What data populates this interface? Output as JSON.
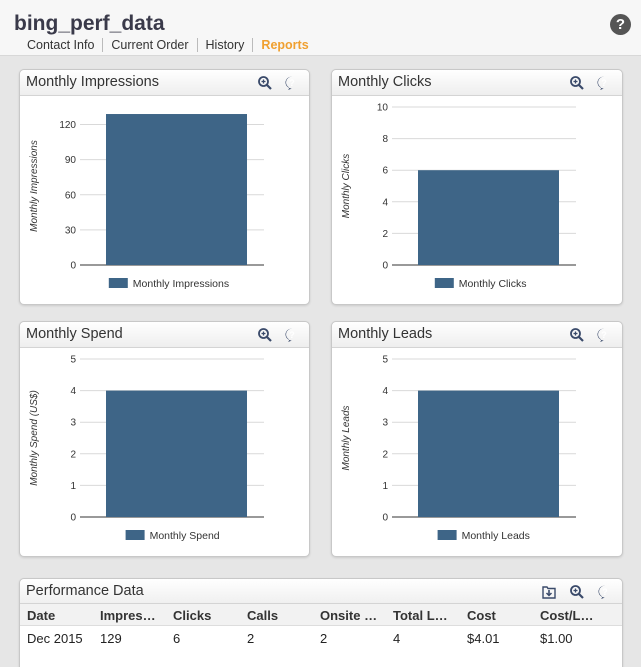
{
  "app": {
    "title": "bing_perf_data"
  },
  "tabs": [
    {
      "label": "Contact Info",
      "active": false
    },
    {
      "label": "Current Order",
      "active": false
    },
    {
      "label": "History",
      "active": false
    },
    {
      "label": "Reports",
      "active": true
    }
  ],
  "colors": {
    "bar": "#3e6587",
    "accent": "#f0a030",
    "icon": "#3a4a6a"
  },
  "panels": [
    {
      "title": "Monthly Impressions"
    },
    {
      "title": "Monthly Clicks"
    },
    {
      "title": "Monthly Spend"
    },
    {
      "title": "Monthly Leads"
    }
  ],
  "chart_data": [
    {
      "type": "bar",
      "title": "Monthly Impressions",
      "ylabel": "Monthly Impressions",
      "yticks": [
        0,
        30,
        60,
        90,
        120
      ],
      "ylim": [
        0,
        135
      ],
      "series": [
        {
          "name": "Monthly Impressions",
          "values": [
            129
          ]
        }
      ],
      "legend": "bottom"
    },
    {
      "type": "bar",
      "title": "Monthly Clicks",
      "ylabel": "Monthly Clicks",
      "yticks": [
        0,
        2,
        4,
        6,
        8,
        10
      ],
      "ylim": [
        0,
        10
      ],
      "series": [
        {
          "name": "Monthly Clicks",
          "values": [
            6
          ]
        }
      ],
      "legend": "bottom"
    },
    {
      "type": "bar",
      "title": "Monthly Spend",
      "ylabel": "Monthly Spend (US$)",
      "yticks": [
        0,
        1,
        2,
        3,
        4,
        5
      ],
      "ylim": [
        0,
        5
      ],
      "series": [
        {
          "name": "Monthly Spend",
          "values": [
            4
          ]
        }
      ],
      "legend": "bottom"
    },
    {
      "type": "bar",
      "title": "Monthly Leads",
      "ylabel": "Monthly Leads",
      "yticks": [
        0,
        1,
        2,
        3,
        4,
        5
      ],
      "ylim": [
        0,
        5
      ],
      "series": [
        {
          "name": "Monthly Leads",
          "values": [
            4
          ]
        }
      ],
      "legend": "bottom"
    }
  ],
  "table": {
    "title": "Performance Data",
    "columns": [
      "Date",
      "Impres…",
      "Clicks",
      "Calls",
      "Onsite …",
      "Total L…",
      "Cost",
      "Cost/L…"
    ],
    "rows": [
      [
        "Dec 2015",
        "129",
        "6",
        "2",
        "2",
        "4",
        "$4.01",
        "$1.00"
      ]
    ]
  }
}
